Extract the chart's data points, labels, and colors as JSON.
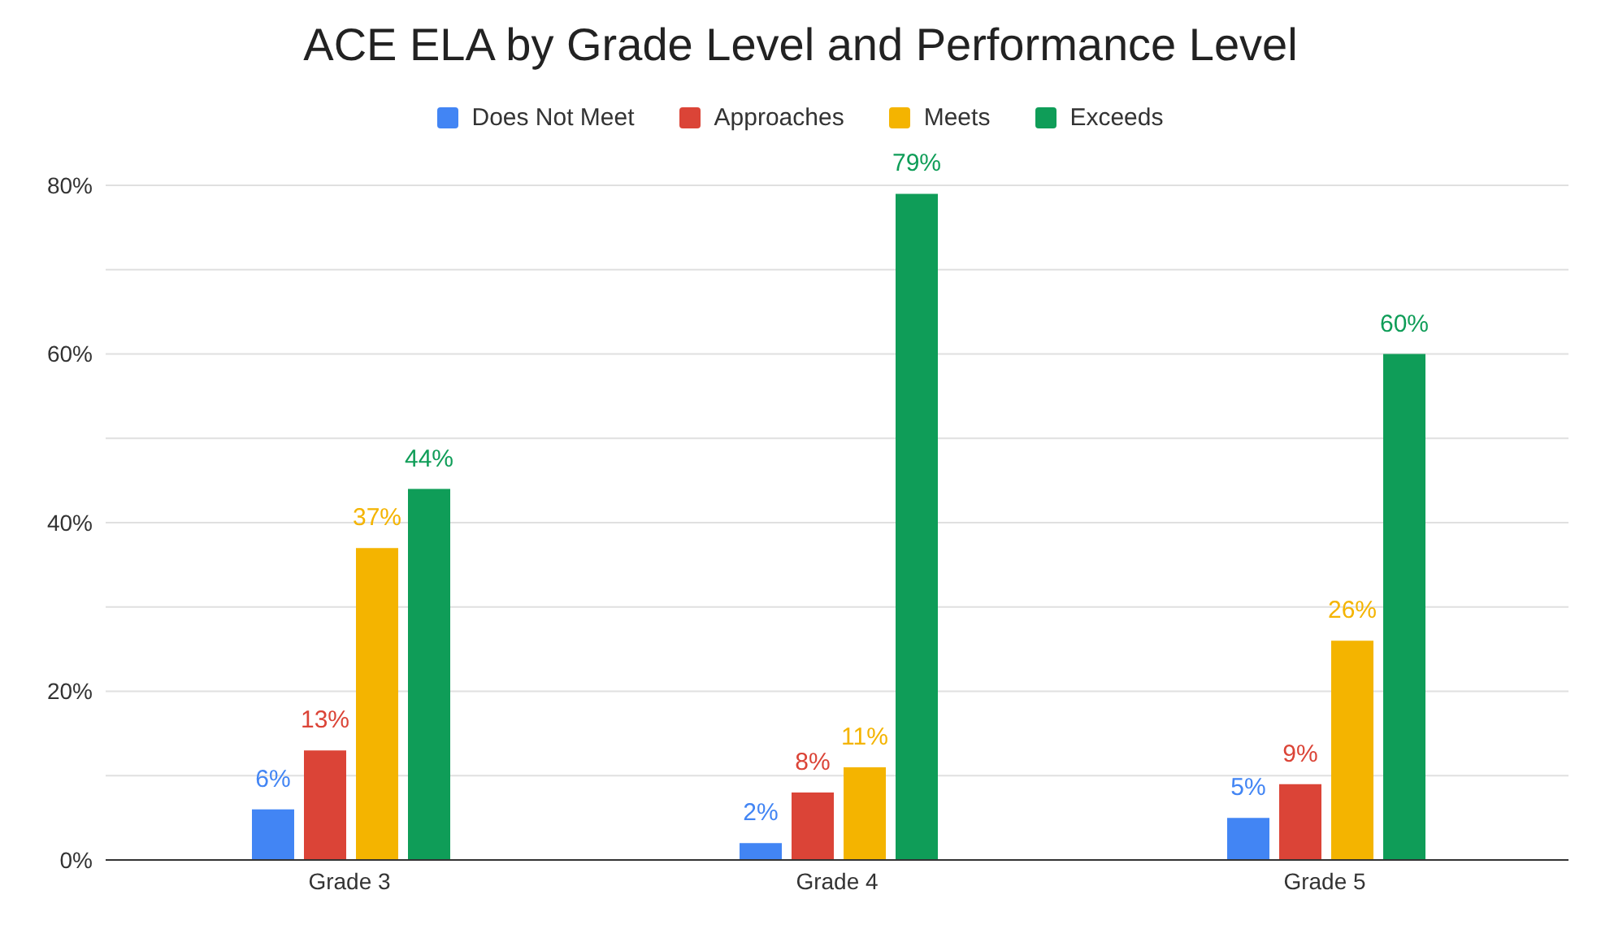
{
  "chart_data": {
    "type": "bar",
    "title": "ACE ELA by Grade Level and Performance Level",
    "categories": [
      "Grade 3",
      "Grade 4",
      "Grade 5"
    ],
    "series": [
      {
        "name": "Does Not Meet",
        "color": "#4285f4",
        "values": [
          6,
          2,
          5
        ],
        "value_labels": [
          "6%",
          "2%",
          "5%"
        ]
      },
      {
        "name": "Approaches",
        "color": "#db4437",
        "values": [
          13,
          8,
          9
        ],
        "value_labels": [
          "13%",
          "8%",
          "9%"
        ]
      },
      {
        "name": "Meets",
        "color": "#f4b400",
        "values": [
          37,
          11,
          26
        ],
        "value_labels": [
          "37%",
          "11%",
          "26%"
        ]
      },
      {
        "name": "Exceeds",
        "color": "#0f9d58",
        "values": [
          44,
          79,
          60
        ],
        "value_labels": [
          "44%",
          "79%",
          "60%"
        ]
      }
    ],
    "ylim": [
      0,
      80
    ],
    "yticks": [
      {
        "value": 0,
        "label": "0%"
      },
      {
        "value": 10,
        "label": null
      },
      {
        "value": 20,
        "label": "20%"
      },
      {
        "value": 30,
        "label": null
      },
      {
        "value": 40,
        "label": "40%"
      },
      {
        "value": 50,
        "label": null
      },
      {
        "value": 60,
        "label": "60%"
      },
      {
        "value": 70,
        "label": null
      },
      {
        "value": 80,
        "label": "80%"
      }
    ],
    "grid": "y",
    "legend": "top"
  }
}
